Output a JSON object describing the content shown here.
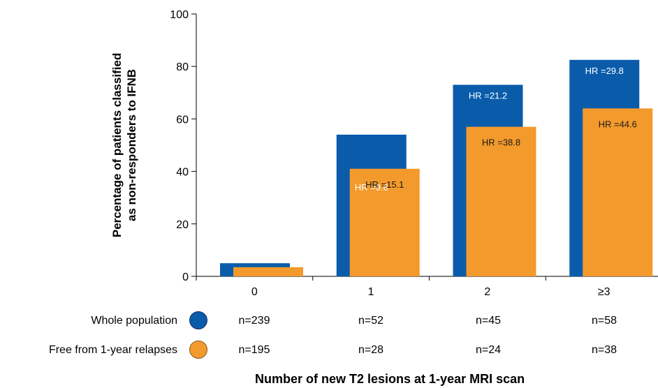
{
  "chart_data": {
    "type": "bar",
    "categories": [
      "0",
      "1",
      "2",
      "≥3"
    ],
    "series": [
      {
        "name": "Whole population",
        "values": [
          5,
          54,
          73,
          82.5
        ],
        "hr_labels": [
          "",
          "HR =9.6",
          "HR =21.2",
          "HR =29.8"
        ],
        "n_labels": [
          "n=239",
          "n=52",
          "n=45",
          "n=58"
        ]
      },
      {
        "name": "Free from 1-year relapses",
        "values": [
          3.5,
          41,
          57,
          64
        ],
        "hr_labels": [
          "",
          "HR =15.1",
          "HR =38.8",
          "HR =44.6"
        ],
        "n_labels": [
          "n=195",
          "n=28",
          "n=24",
          "n=38"
        ]
      }
    ],
    "ylabel_line1": "Percentage of patients classified",
    "ylabel_line2": "as non-responders to IFNB",
    "xlabel": "Number of new T2 lesions at 1-year MRI scan",
    "ylim": [
      0,
      100
    ],
    "yticks": [
      0,
      20,
      40,
      60,
      80,
      100
    ],
    "grid": false,
    "legend_position": "bottom-left",
    "colors": {
      "whole": "#0a5cab",
      "free": "#f39a2c"
    }
  }
}
